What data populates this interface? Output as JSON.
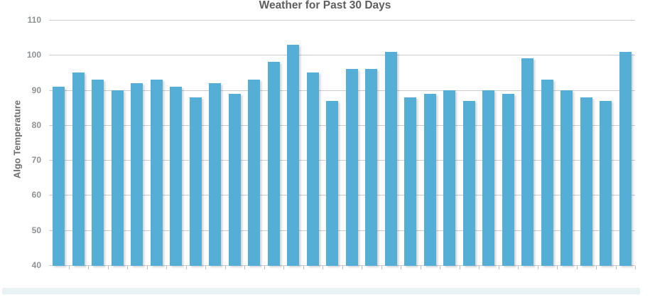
{
  "chart_data": {
    "type": "bar",
    "title": "Weather for Past 30 Days",
    "xlabel": "",
    "ylabel": "Algo Temperature",
    "values": [
      91,
      95,
      93,
      90,
      92,
      93,
      91,
      88,
      92,
      89,
      93,
      98,
      103,
      95,
      87,
      96,
      96,
      101,
      88,
      89,
      90,
      87,
      90,
      89,
      99,
      93,
      90,
      88,
      87,
      101
    ],
    "num_bars": 30,
    "ylim": [
      40,
      110
    ],
    "yticks": [
      110,
      100,
      90,
      80,
      70,
      60,
      50,
      40
    ],
    "x_tick_labels": [],
    "grid": true,
    "legend_position": "none",
    "bar_color": "#55aed6",
    "grid_color": "#cccccc",
    "title_color": "#5e5e5e",
    "axis_label_color": "#6e6e6e",
    "tick_label_color": "#8f9193"
  }
}
